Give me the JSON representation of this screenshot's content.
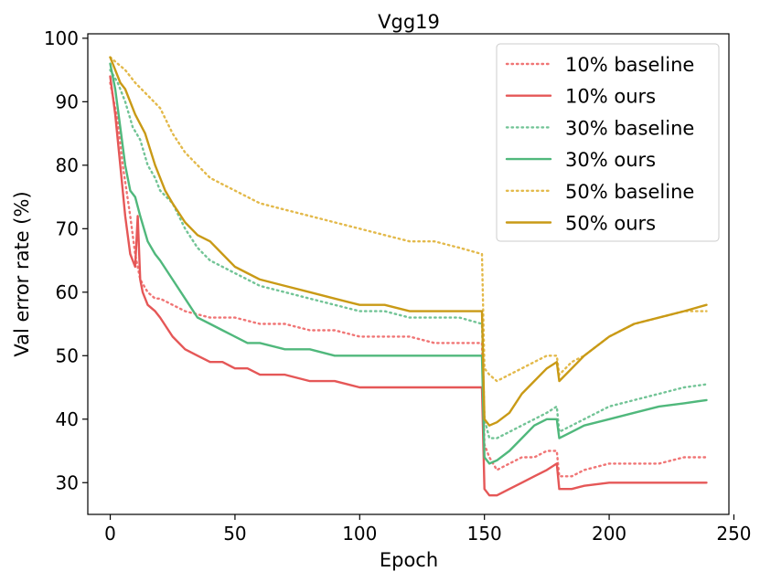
{
  "chart_data": {
    "type": "line",
    "title": "Vgg19",
    "xlabel": "Epoch",
    "ylabel": "Val error rate (%)",
    "xlim": [
      -9,
      248
    ],
    "ylim": [
      25,
      100.7
    ],
    "xticks": [
      0,
      50,
      100,
      150,
      200,
      250
    ],
    "yticks": [
      30,
      40,
      50,
      60,
      70,
      80,
      90,
      100
    ],
    "legend_position": "top-right",
    "series": [
      {
        "name": "10% baseline",
        "color": "#f07575",
        "style": "dotted",
        "points": [
          [
            0,
            93
          ],
          [
            3,
            87
          ],
          [
            5,
            80
          ],
          [
            8,
            72
          ],
          [
            10,
            66
          ],
          [
            12,
            62
          ],
          [
            15,
            60
          ],
          [
            18,
            59
          ],
          [
            20,
            59
          ],
          [
            25,
            58
          ],
          [
            30,
            57
          ],
          [
            40,
            56
          ],
          [
            50,
            56
          ],
          [
            60,
            55
          ],
          [
            70,
            55
          ],
          [
            80,
            54
          ],
          [
            90,
            54
          ],
          [
            100,
            53
          ],
          [
            110,
            53
          ],
          [
            120,
            53
          ],
          [
            130,
            52
          ],
          [
            140,
            52
          ],
          [
            149,
            52
          ],
          [
            150,
            36
          ],
          [
            152,
            34
          ],
          [
            155,
            32
          ],
          [
            160,
            33
          ],
          [
            165,
            34
          ],
          [
            170,
            34
          ],
          [
            175,
            35
          ],
          [
            179,
            35
          ],
          [
            180,
            31
          ],
          [
            185,
            31
          ],
          [
            190,
            32
          ],
          [
            200,
            33
          ],
          [
            210,
            33
          ],
          [
            220,
            33
          ],
          [
            230,
            34
          ],
          [
            239,
            34
          ]
        ]
      },
      {
        "name": "10% ours",
        "color": "#e55757",
        "style": "solid",
        "points": [
          [
            0,
            94
          ],
          [
            2,
            88
          ],
          [
            4,
            80
          ],
          [
            6,
            72
          ],
          [
            8,
            66
          ],
          [
            10,
            64
          ],
          [
            11,
            72
          ],
          [
            12,
            62
          ],
          [
            13,
            60
          ],
          [
            15,
            58
          ],
          [
            18,
            57
          ],
          [
            20,
            56
          ],
          [
            25,
            53
          ],
          [
            30,
            51
          ],
          [
            35,
            50
          ],
          [
            40,
            49
          ],
          [
            45,
            49
          ],
          [
            50,
            48
          ],
          [
            55,
            48
          ],
          [
            60,
            47
          ],
          [
            70,
            47
          ],
          [
            80,
            46
          ],
          [
            90,
            46
          ],
          [
            100,
            45
          ],
          [
            110,
            45
          ],
          [
            120,
            45
          ],
          [
            130,
            45
          ],
          [
            140,
            45
          ],
          [
            149,
            45
          ],
          [
            150,
            29
          ],
          [
            152,
            28
          ],
          [
            155,
            28
          ],
          [
            160,
            29
          ],
          [
            165,
            30
          ],
          [
            170,
            31
          ],
          [
            175,
            32
          ],
          [
            179,
            33
          ],
          [
            180,
            29
          ],
          [
            185,
            29
          ],
          [
            190,
            29.5
          ],
          [
            200,
            30
          ],
          [
            210,
            30
          ],
          [
            220,
            30
          ],
          [
            230,
            30
          ],
          [
            239,
            30
          ]
        ]
      },
      {
        "name": "30% baseline",
        "color": "#72c496",
        "style": "dotted",
        "points": [
          [
            0,
            95
          ],
          [
            3,
            93
          ],
          [
            6,
            90
          ],
          [
            9,
            86
          ],
          [
            12,
            84
          ],
          [
            15,
            80
          ],
          [
            18,
            78
          ],
          [
            20,
            76
          ],
          [
            25,
            74
          ],
          [
            30,
            70
          ],
          [
            35,
            67
          ],
          [
            40,
            65
          ],
          [
            50,
            63
          ],
          [
            60,
            61
          ],
          [
            70,
            60
          ],
          [
            80,
            59
          ],
          [
            90,
            58
          ],
          [
            100,
            57
          ],
          [
            110,
            57
          ],
          [
            120,
            56
          ],
          [
            130,
            56
          ],
          [
            140,
            56
          ],
          [
            149,
            55
          ],
          [
            150,
            40
          ],
          [
            152,
            37
          ],
          [
            155,
            37
          ],
          [
            160,
            38
          ],
          [
            165,
            39
          ],
          [
            170,
            40
          ],
          [
            175,
            41
          ],
          [
            179,
            42
          ],
          [
            180,
            38
          ],
          [
            185,
            39
          ],
          [
            190,
            40
          ],
          [
            200,
            42
          ],
          [
            210,
            43
          ],
          [
            220,
            44
          ],
          [
            230,
            45
          ],
          [
            239,
            45.5
          ]
        ]
      },
      {
        "name": "30% ours",
        "color": "#50b87c",
        "style": "solid",
        "points": [
          [
            0,
            96
          ],
          [
            2,
            92
          ],
          [
            4,
            86
          ],
          [
            6,
            80
          ],
          [
            8,
            76
          ],
          [
            10,
            75
          ],
          [
            12,
            72
          ],
          [
            15,
            68
          ],
          [
            18,
            66
          ],
          [
            20,
            65
          ],
          [
            25,
            62
          ],
          [
            30,
            59
          ],
          [
            35,
            56
          ],
          [
            40,
            55
          ],
          [
            45,
            54
          ],
          [
            50,
            53
          ],
          [
            55,
            52
          ],
          [
            60,
            52
          ],
          [
            70,
            51
          ],
          [
            80,
            51
          ],
          [
            90,
            50
          ],
          [
            100,
            50
          ],
          [
            110,
            50
          ],
          [
            120,
            50
          ],
          [
            130,
            50
          ],
          [
            140,
            50
          ],
          [
            149,
            50
          ],
          [
            150,
            34
          ],
          [
            152,
            33
          ],
          [
            155,
            33.5
          ],
          [
            160,
            35
          ],
          [
            165,
            37
          ],
          [
            170,
            39
          ],
          [
            175,
            40
          ],
          [
            179,
            40
          ],
          [
            180,
            37
          ],
          [
            185,
            38
          ],
          [
            190,
            39
          ],
          [
            200,
            40
          ],
          [
            210,
            41
          ],
          [
            220,
            42
          ],
          [
            230,
            42.5
          ],
          [
            239,
            43
          ]
        ]
      },
      {
        "name": "50% baseline",
        "color": "#e3b94a",
        "style": "dotted",
        "points": [
          [
            0,
            97
          ],
          [
            3,
            96
          ],
          [
            6,
            95
          ],
          [
            10,
            93
          ],
          [
            15,
            91
          ],
          [
            20,
            89
          ],
          [
            25,
            85
          ],
          [
            30,
            82
          ],
          [
            35,
            80
          ],
          [
            40,
            78
          ],
          [
            45,
            77
          ],
          [
            50,
            76
          ],
          [
            55,
            75
          ],
          [
            60,
            74
          ],
          [
            70,
            73
          ],
          [
            80,
            72
          ],
          [
            90,
            71
          ],
          [
            100,
            70
          ],
          [
            110,
            69
          ],
          [
            120,
            68
          ],
          [
            130,
            68
          ],
          [
            140,
            67
          ],
          [
            149,
            66
          ],
          [
            150,
            48
          ],
          [
            152,
            47
          ],
          [
            155,
            46
          ],
          [
            160,
            47
          ],
          [
            165,
            48
          ],
          [
            170,
            49
          ],
          [
            175,
            50
          ],
          [
            179,
            50
          ],
          [
            180,
            47
          ],
          [
            185,
            49
          ],
          [
            190,
            50
          ],
          [
            200,
            53
          ],
          [
            210,
            55
          ],
          [
            220,
            56
          ],
          [
            230,
            57
          ],
          [
            239,
            57
          ]
        ]
      },
      {
        "name": "50% ours",
        "color": "#c99a16",
        "style": "solid",
        "points": [
          [
            0,
            97
          ],
          [
            2,
            95
          ],
          [
            4,
            93
          ],
          [
            6,
            92
          ],
          [
            10,
            88
          ],
          [
            14,
            85
          ],
          [
            18,
            80
          ],
          [
            20,
            78
          ],
          [
            22,
            76
          ],
          [
            25,
            74
          ],
          [
            30,
            71
          ],
          [
            35,
            69
          ],
          [
            40,
            68
          ],
          [
            45,
            66
          ],
          [
            50,
            64
          ],
          [
            55,
            63
          ],
          [
            60,
            62
          ],
          [
            70,
            61
          ],
          [
            80,
            60
          ],
          [
            90,
            59
          ],
          [
            100,
            58
          ],
          [
            110,
            58
          ],
          [
            120,
            57
          ],
          [
            130,
            57
          ],
          [
            140,
            57
          ],
          [
            149,
            57
          ],
          [
            150,
            40
          ],
          [
            152,
            39
          ],
          [
            155,
            39.5
          ],
          [
            160,
            41
          ],
          [
            165,
            44
          ],
          [
            170,
            46
          ],
          [
            175,
            48
          ],
          [
            179,
            49
          ],
          [
            180,
            46
          ],
          [
            185,
            48
          ],
          [
            190,
            50
          ],
          [
            200,
            53
          ],
          [
            210,
            55
          ],
          [
            220,
            56
          ],
          [
            230,
            57
          ],
          [
            239,
            58
          ]
        ]
      }
    ]
  }
}
